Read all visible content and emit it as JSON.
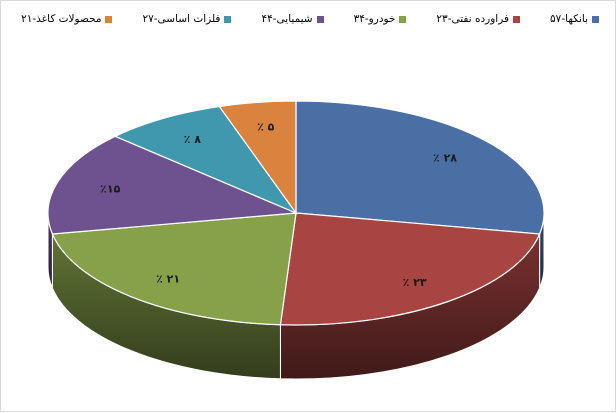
{
  "chart_data": {
    "type": "pie",
    "variant": "3d",
    "categories": [
      "بانکها-۵۷",
      "فراورده نفتی-۲۳",
      "خودرو-۳۴",
      "شیمیایی-۴۴",
      "فلزات اساسی-۲۷",
      "محصولات کاغذ-۲۱"
    ],
    "values": [
      28,
      23,
      21,
      15,
      8,
      5
    ],
    "data_labels": [
      "٪ ۲۸",
      "٪ ۲۳",
      "٪ ۲۱",
      "٪۱۵",
      "٪ ۸",
      "٪ ۵"
    ],
    "colors": [
      "#4a6fa5",
      "#a84442",
      "#87a14b",
      "#6e5290",
      "#3f98ae",
      "#d9833e"
    ],
    "legend_position": "top"
  }
}
